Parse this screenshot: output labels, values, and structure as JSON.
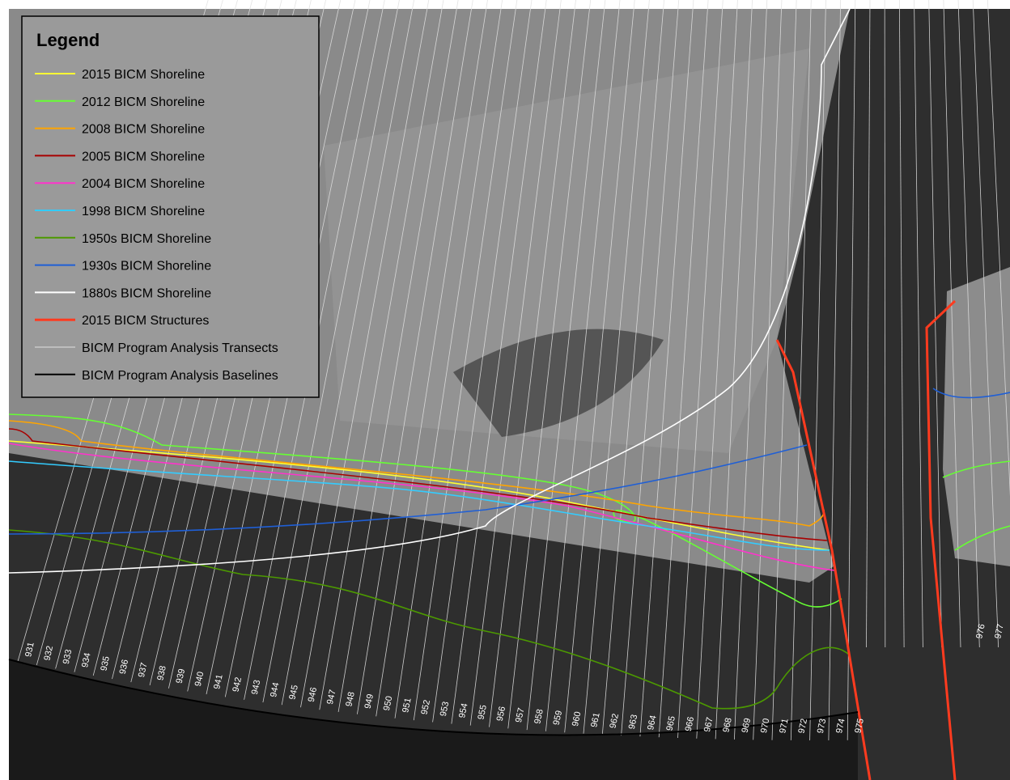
{
  "legend": {
    "title": "Legend",
    "items": [
      {
        "label": "2015 BICM Shoreline",
        "color": "#ffff33"
      },
      {
        "label": "2012 BICM Shoreline",
        "color": "#66ff33"
      },
      {
        "label": "2008 BICM Shoreline",
        "color": "#ffa500"
      },
      {
        "label": "2005 BICM Shoreline",
        "color": "#a80000"
      },
      {
        "label": "2004 BICM Shoreline",
        "color": "#ff33cc"
      },
      {
        "label": "1998 BICM Shoreline",
        "color": "#33ccff"
      },
      {
        "label": "1950s BICM Shoreline",
        "color": "#4c9900"
      },
      {
        "label": "1930s BICM Shoreline",
        "color": "#1f5fd6"
      },
      {
        "label": "1880s BICM Shoreline",
        "color": "#ffffff"
      },
      {
        "label": "2015 BICM Structures",
        "color": "#ff3b1f"
      },
      {
        "label": "BICM Program Analysis Transects",
        "color": "#e0e0e0"
      },
      {
        "label": "BICM Program Analysis Baselines",
        "color": "#000000"
      }
    ]
  },
  "transect_labels": [
    "931",
    "932",
    "933",
    "934",
    "935",
    "936",
    "937",
    "938",
    "939",
    "940",
    "941",
    "942",
    "943",
    "944",
    "945",
    "946",
    "947",
    "948",
    "949",
    "950",
    "951",
    "952",
    "953",
    "954",
    "955",
    "956",
    "957",
    "958",
    "959",
    "960",
    "961",
    "962",
    "963",
    "964",
    "965",
    "966",
    "967",
    "968",
    "969",
    "970",
    "971",
    "972",
    "973",
    "974",
    "975"
  ],
  "right_transect_labels": [
    "976",
    "977"
  ]
}
